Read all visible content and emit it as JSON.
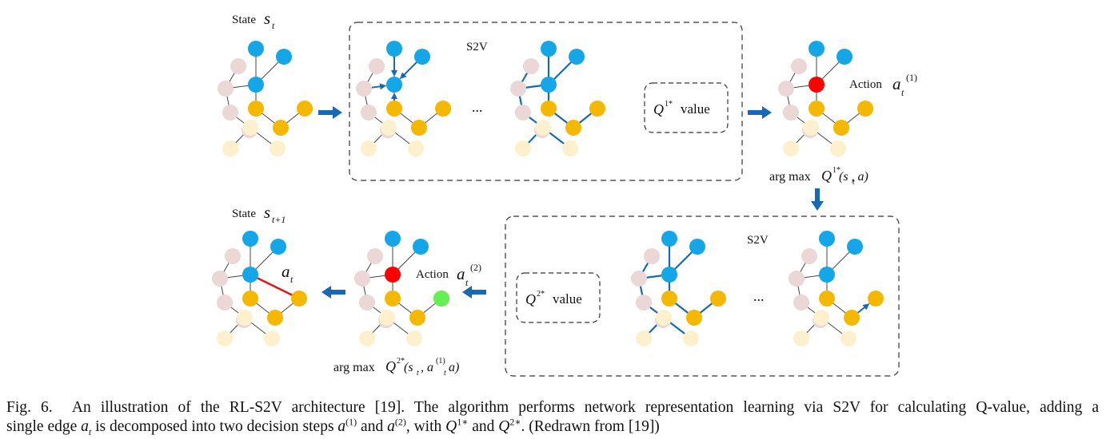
{
  "state_label": "State",
  "state_var": "s",
  "state_sub_t": "t",
  "state_sub_t1": "t+1",
  "s2v_label": "S2V",
  "ellipsis": "...",
  "q1_box": {
    "q": "Q",
    "sup": "1*",
    "word": "value"
  },
  "q2_box": {
    "q": "Q",
    "sup": "2*",
    "word": "value"
  },
  "action_label": "Action",
  "action_var": "a",
  "action_sub": "t",
  "action_sup_1": "(1)",
  "action_sup_2": "(2)",
  "edge_label_var": "a",
  "edge_label_sub": "t",
  "argmax1": {
    "prefix": "arg max",
    "q": "Q",
    "sup": "1*",
    "args": "(s , a)",
    "sub": "t"
  },
  "argmax2": {
    "prefix": "arg max",
    "q": "Q",
    "sup": "2*",
    "s": "(s",
    "sub_t": "t",
    "a1": ", a",
    "a1_sup": "(1)",
    "a1_sub": "t",
    "tail": "a)"
  },
  "colors": {
    "blue_node": "#14a6e6",
    "orange_node": "#f5b800",
    "pink_node": "#ead7d6",
    "cream_node": "#fdf0cd",
    "red_node": "#ff0000",
    "green_node": "#66ee55",
    "arrow": "#1769b5",
    "red_edge": "#e11919",
    "gray_edge": "#444444"
  },
  "caption": {
    "fig": "Fig. 6.",
    "line1": "An illustration of the RL-S2V architecture [19]. The algorithm performs network representation learning via S2V for calculating Q-value, adding a",
    "line2_a": "single edge ",
    "line2_at": "a",
    "line2_at_sub": "t",
    "line2_b": " is decomposed into two decision steps ",
    "line2_a1": "a",
    "line2_a1_sup": "(1)",
    "line2_c": " and ",
    "line2_a2": "a",
    "line2_a2_sup": "(2)",
    "line2_d": ", with ",
    "line2_q1": "Q",
    "line2_q1_sup": "1∗",
    "line2_e": " and ",
    "line2_q2": "Q",
    "line2_q2_sup": "2∗",
    "line2_f": ". (Redrawn from [19])"
  }
}
